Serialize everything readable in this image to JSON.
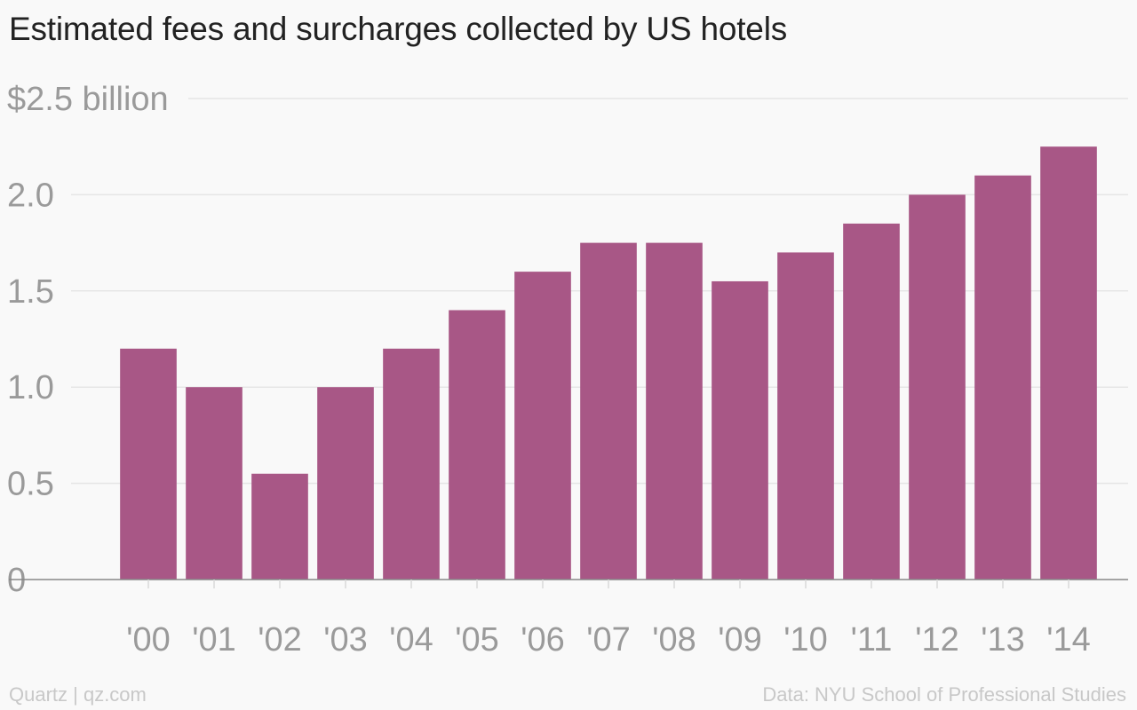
{
  "chart_data": {
    "type": "bar",
    "title": "Estimated fees and surcharges collected by US hotels",
    "xlabel": "",
    "ylabel": "",
    "categories": [
      "'00",
      "'01",
      "'02",
      "'03",
      "'04",
      "'05",
      "'06",
      "'07",
      "'08",
      "'09",
      "'10",
      "'11",
      "'12",
      "'13",
      "'14"
    ],
    "values": [
      1.2,
      1.0,
      0.55,
      1.0,
      1.2,
      1.4,
      1.6,
      1.75,
      1.75,
      1.55,
      1.7,
      1.85,
      2.0,
      2.1,
      2.25
    ],
    "ylim": [
      0,
      2.5
    ],
    "yticks": [
      {
        "value": 0,
        "label": "0"
      },
      {
        "value": 0.5,
        "label": "0.5"
      },
      {
        "value": 1.0,
        "label": "1.0"
      },
      {
        "value": 1.5,
        "label": "1.5"
      },
      {
        "value": 2.0,
        "label": "2.0"
      },
      {
        "value": 2.5,
        "label": "$2.5 billion"
      }
    ],
    "grid": true,
    "bar_color": "#a85786"
  },
  "footer": {
    "source_left": "Quartz | qz.com",
    "source_right": "Data: NYU School of Professional Studies"
  }
}
